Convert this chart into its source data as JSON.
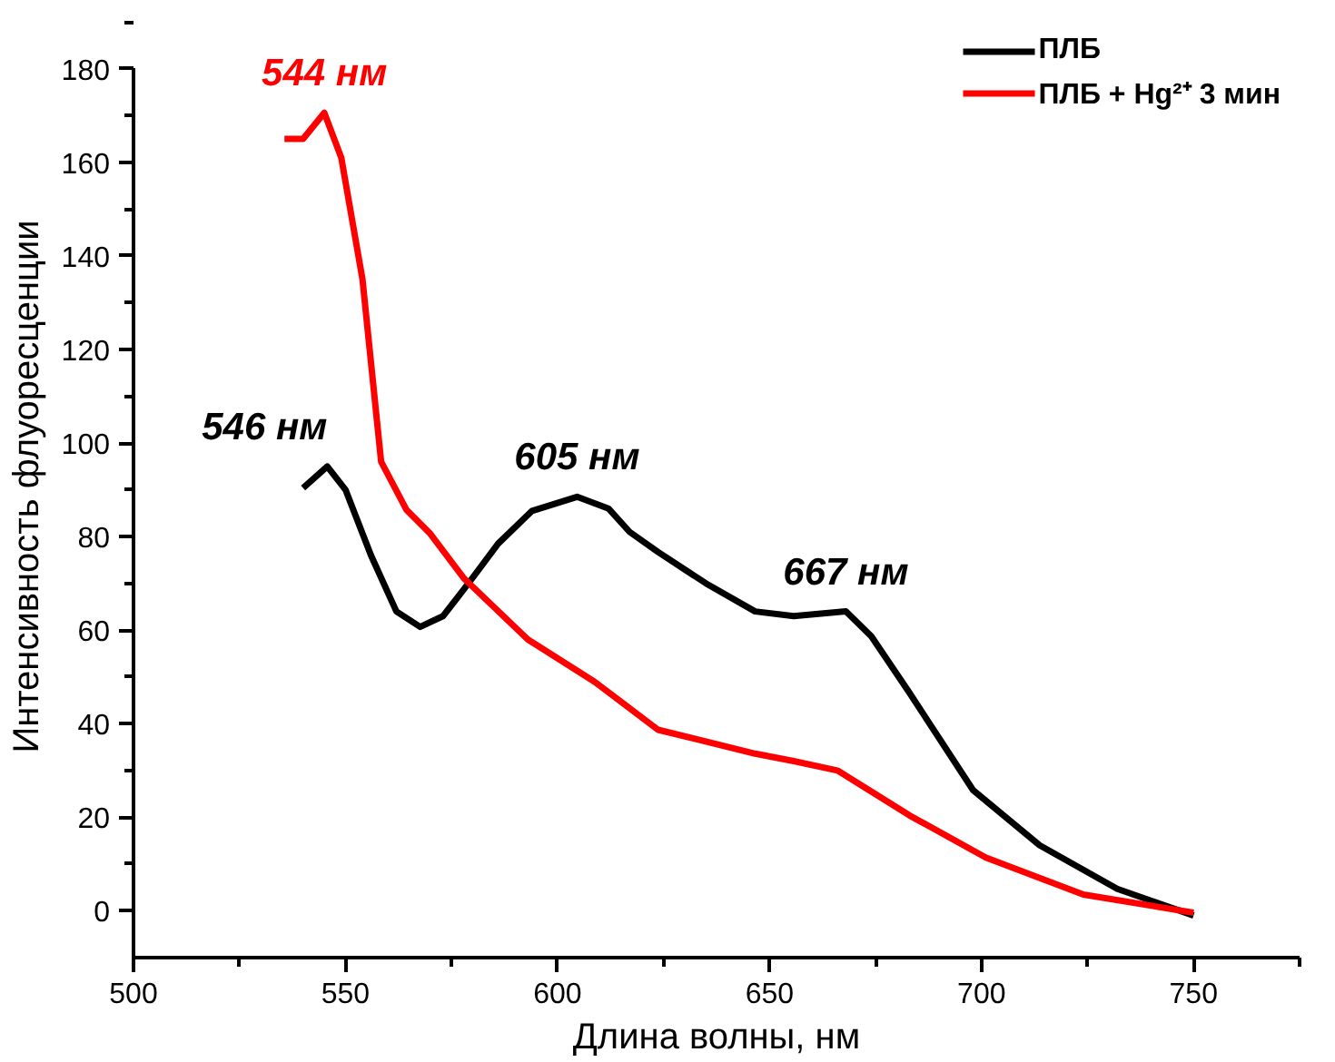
{
  "chart_data": {
    "type": "line",
    "xlabel": "Длина волны, нм",
    "ylabel": "Интенсивность флуоресценции",
    "xlim": [
      500,
      775
    ],
    "xticks": [
      500,
      550,
      600,
      650,
      700,
      750
    ],
    "ylim": [
      -10,
      180
    ],
    "yticks": [
      0,
      20,
      40,
      60,
      80,
      100,
      120,
      140,
      160,
      180
    ],
    "grid": false,
    "legend": "top right",
    "line_style": "solid",
    "marker": "none",
    "series": [
      {
        "name": "ПЛБ",
        "color": "#000000",
        "x": [
          540,
          545.7,
          550,
          556,
          562,
          567.6,
          573,
          579,
          586,
          594,
          604.6,
          612,
          617,
          623.7,
          635,
          646.6,
          655.7,
          668,
          674,
          683,
          698,
          713.7,
          732,
          750
        ],
        "values": [
          90.4,
          95,
          90,
          76,
          64,
          60.7,
          63,
          70,
          78.5,
          85.5,
          88.5,
          86,
          81,
          76.7,
          70,
          64,
          63,
          64,
          58.7,
          46.6,
          25.8,
          14,
          4.7,
          -1
        ]
      },
      {
        "name": "ПЛБ + Hg²⁺ 3 мин",
        "color": "#ff0000",
        "x": [
          535.6,
          540,
          545,
          549,
          554,
          558.4,
          564.4,
          570,
          578,
          593,
          608.7,
          623.7,
          646.6,
          655.7,
          666,
          683,
          701,
          724,
          750
        ],
        "values": [
          165,
          165,
          170.6,
          161,
          135,
          96,
          85.7,
          80.6,
          71,
          58,
          49,
          38.7,
          33.6,
          32,
          30,
          20.4,
          11.4,
          3.5,
          -0.4
        ]
      }
    ],
    "annotations": [
      {
        "text": "544 нм",
        "x": 545,
        "y": 170.6
      },
      {
        "text": "546 нм",
        "x": 545.7,
        "y": 95
      },
      {
        "text": "605 нм",
        "x": 604.6,
        "y": 88.5
      },
      {
        "text": "667 нм",
        "x": 668,
        "y": 64
      }
    ]
  }
}
